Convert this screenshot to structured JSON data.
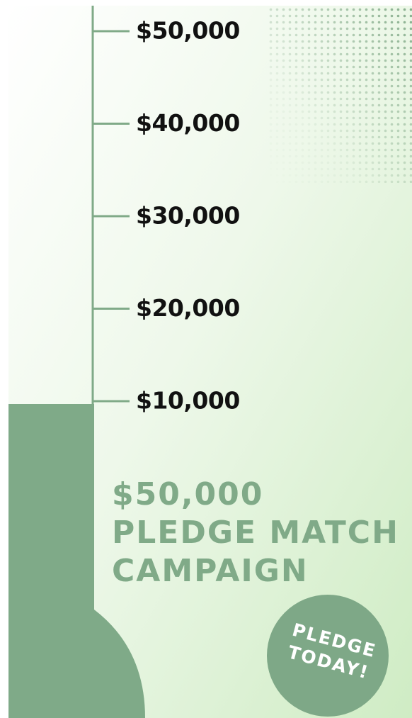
{
  "ticks": [
    "$50,000",
    "$40,000",
    "$30,000",
    "$20,000",
    "$10,000"
  ],
  "title": {
    "lines": [
      "$50,000",
      "PLEDGE MATCH",
      "CAMPAIGN"
    ]
  },
  "button": {
    "lines": [
      "PLEDGE",
      "TODAY!"
    ]
  }
}
